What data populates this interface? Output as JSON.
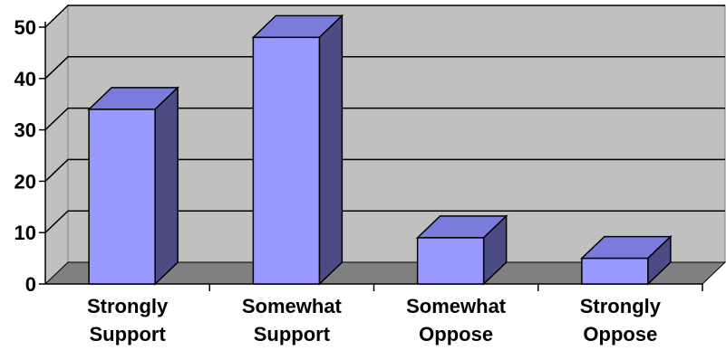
{
  "chart_data": {
    "type": "bar",
    "title": "",
    "xlabel": "",
    "ylabel": "",
    "categories": [
      [
        "Strongly",
        "Support"
      ],
      [
        "Somewhat",
        "Support"
      ],
      [
        "Somewhat",
        "Oppose"
      ],
      [
        "Strongly",
        "Oppose"
      ]
    ],
    "values": [
      34,
      48,
      9,
      5
    ],
    "ylim": [
      0,
      50
    ],
    "yticks": [
      0,
      10,
      20,
      30,
      40,
      50
    ],
    "grid": true,
    "style": "3d-column",
    "colors": {
      "bar_front": "#9999ff",
      "bar_top": "#7b7bdc",
      "bar_side": "#4c4c84",
      "wall": "#c0c0c0",
      "floor": "#808080",
      "gridline": "#000000"
    }
  }
}
